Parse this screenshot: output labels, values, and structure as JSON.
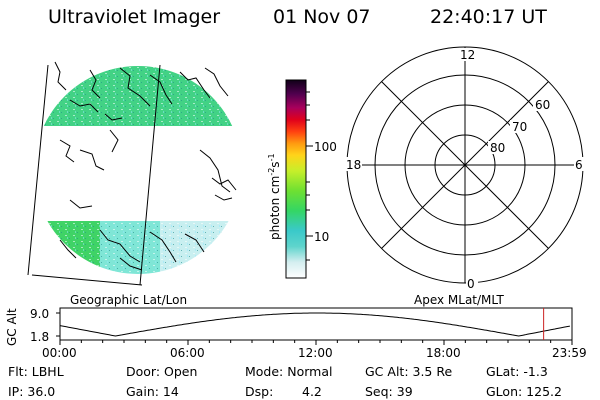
{
  "header": {
    "title": "Ultraviolet Imager",
    "date": "01 Nov 07",
    "time": "22:40:17 UT"
  },
  "colorbar": {
    "unit_label": "photon cm",
    "unit_sup1": "-2",
    "unit_s": "s",
    "unit_sup2": "-1",
    "ticks": [
      "100",
      "10"
    ]
  },
  "polar_plot": {
    "mlt_labels": {
      "top": "12",
      "left": "18",
      "right": "6",
      "bottom": "0"
    },
    "lat_labels": [
      "60",
      "70",
      "80"
    ]
  },
  "timeline": {
    "left_caption": "Geographic Lat/Lon",
    "right_caption": "Apex MLat/MLT",
    "ylabel": "GC Alt",
    "y_ticks": [
      "9.0",
      "1.8"
    ],
    "x_ticks": [
      "00:00",
      "06:00",
      "12:00",
      "18:00",
      "23:59"
    ],
    "marker_time_hours": 22.67,
    "line_color": "#000000",
    "marker_color": "#cc2222"
  },
  "info": {
    "flt": "Flt: LBHL",
    "door": "Door: Open",
    "mode": "Mode: Normal",
    "gc_alt": "GC Alt: 3.5 Re",
    "glat": "GLat:  -1.3",
    "ip": "IP: 36.0",
    "gain": "Gain: 14",
    "dsp_label": "Dsp:",
    "dsp_value": "4.2",
    "seq": "Seq: 39",
    "glon": "GLon: 125.2"
  },
  "colors": {
    "aurora_green": "#44d65a",
    "aurora_cyan": "#7fe6d6",
    "aurora_light": "#c8eff0"
  }
}
